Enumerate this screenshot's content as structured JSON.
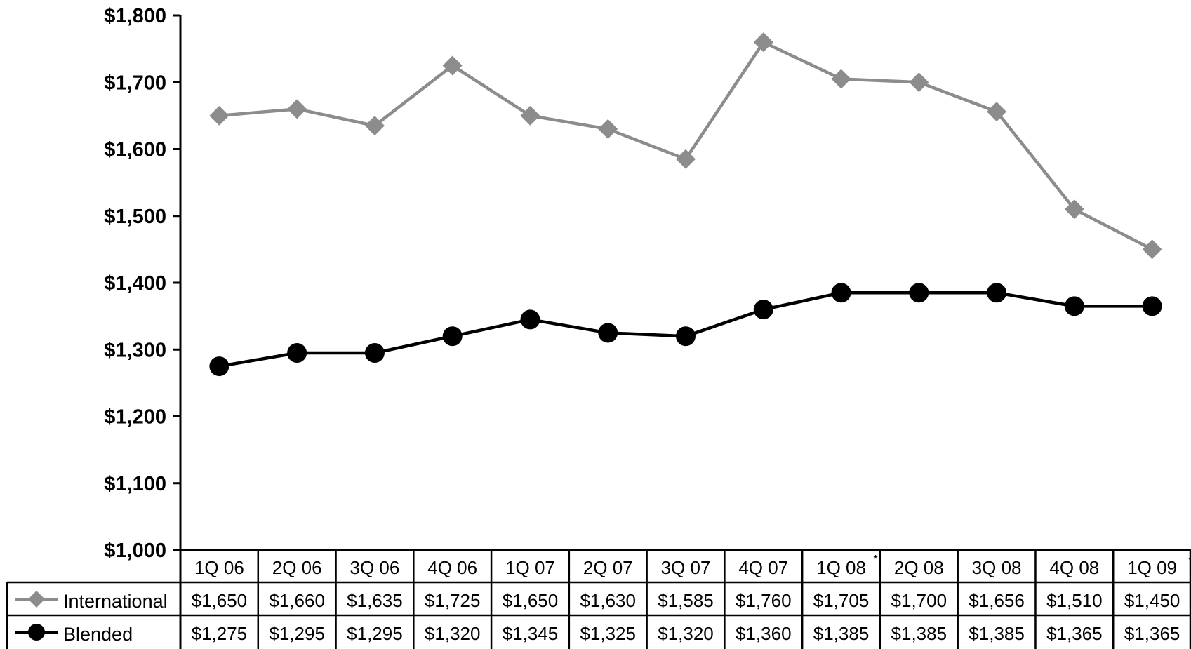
{
  "chart_data": {
    "type": "line",
    "categories": [
      "1Q 06",
      "2Q 06",
      "3Q 06",
      "4Q 06",
      "1Q 07",
      "2Q 07",
      "3Q 07",
      "4Q 07",
      "1Q 08",
      "2Q 08",
      "3Q 08",
      "4Q 08",
      "1Q 09"
    ],
    "category_marks": [
      "",
      "",
      "",
      "",
      "",
      "",
      "",
      "",
      "*",
      "",
      "",
      "",
      "◆"
    ],
    "series": [
      {
        "name": "International",
        "values": [
          1650,
          1660,
          1635,
          1725,
          1650,
          1630,
          1585,
          1760,
          1705,
          1700,
          1656,
          1510,
          1450
        ],
        "labels": [
          "$1,650",
          "$1,660",
          "$1,635",
          "$1,725",
          "$1,650",
          "$1,630",
          "$1,585",
          "$1,760",
          "$1,705",
          "$1,700",
          "$1,656",
          "$1,510",
          "$1,450"
        ],
        "color": "#8c8c8c",
        "marker": "diamond"
      },
      {
        "name": "Blended",
        "values": [
          1275,
          1295,
          1295,
          1320,
          1345,
          1325,
          1320,
          1360,
          1385,
          1385,
          1385,
          1365,
          1365
        ],
        "labels": [
          "$1,275",
          "$1,295",
          "$1,295",
          "$1,320",
          "$1,345",
          "$1,325",
          "$1,320",
          "$1,360",
          "$1,385",
          "$1,385",
          "$1,385",
          "$1,365",
          "$1,365"
        ],
        "color": "#000000",
        "marker": "circle"
      }
    ],
    "y_ticks": [
      "$1,000",
      "$1,100",
      "$1,200",
      "$1,300",
      "$1,400",
      "$1,500",
      "$1,600",
      "$1,700",
      "$1,800"
    ],
    "y_tick_values": [
      1000,
      1100,
      1200,
      1300,
      1400,
      1500,
      1600,
      1700,
      1800
    ],
    "ylim": [
      1000,
      1800
    ],
    "grid": false,
    "legend": "data-table-left"
  }
}
